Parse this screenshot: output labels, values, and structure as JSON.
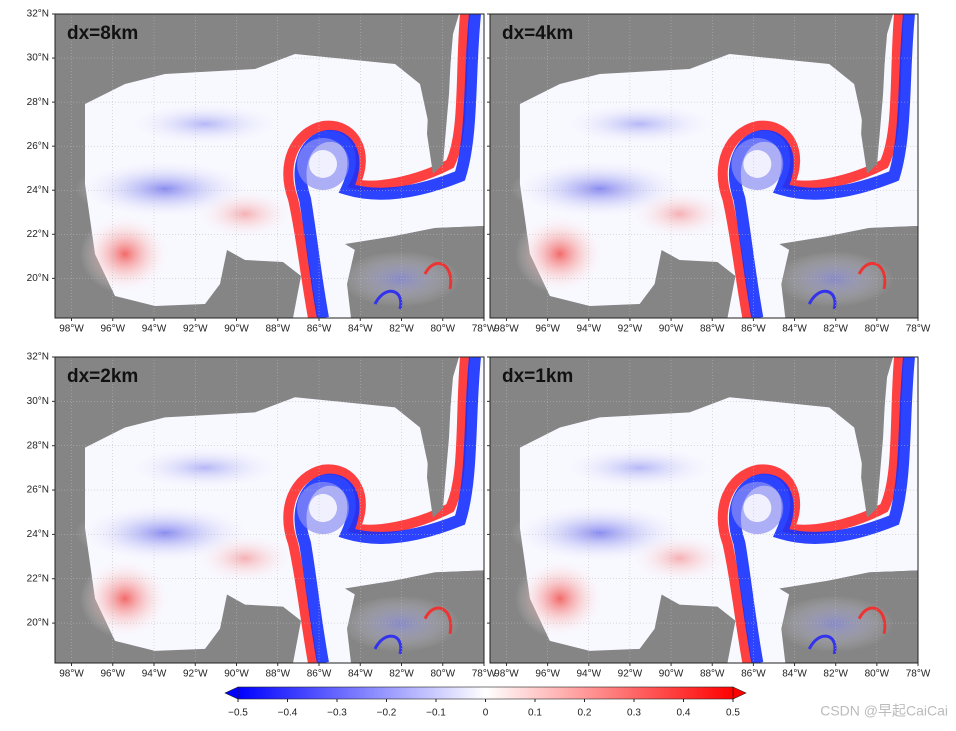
{
  "panels": [
    {
      "title": "dx=8km"
    },
    {
      "title": "dx=4km"
    },
    {
      "title": "dx=2km"
    },
    {
      "title": "dx=1km"
    }
  ],
  "lat_lim": [
    18.2,
    32
  ],
  "lon_lim": [
    -98.8,
    -78
  ],
  "lat_ticks": [
    {
      "value": 32,
      "label": "32°N"
    },
    {
      "value": 30,
      "label": "30°N"
    },
    {
      "value": 28,
      "label": "28°N"
    },
    {
      "value": 26,
      "label": "26°N"
    },
    {
      "value": 24,
      "label": "24°N"
    },
    {
      "value": 22,
      "label": "22°N"
    },
    {
      "value": 20,
      "label": "20°N"
    }
  ],
  "lon_ticks": [
    {
      "value": -98,
      "label": "98°W"
    },
    {
      "value": -96,
      "label": "96°W"
    },
    {
      "value": -94,
      "label": "94°W"
    },
    {
      "value": -92,
      "label": "92°W"
    },
    {
      "value": -90,
      "label": "90°W"
    },
    {
      "value": -88,
      "label": "88°W"
    },
    {
      "value": -86,
      "label": "86°W"
    },
    {
      "value": -84,
      "label": "84°W"
    },
    {
      "value": -82,
      "label": "82°W"
    },
    {
      "value": -80,
      "label": "80°W"
    },
    {
      "value": -78,
      "label": "78°W"
    }
  ],
  "colorbar": {
    "lim": [
      -0.5,
      0.5
    ],
    "colors": [
      "#0000ff",
      "#ffffff",
      "#ff0000"
    ],
    "ticks": [
      {
        "value": -0.5,
        "label": "−0.5"
      },
      {
        "value": -0.4,
        "label": "−0.4"
      },
      {
        "value": -0.3,
        "label": "−0.3"
      },
      {
        "value": -0.2,
        "label": "−0.2"
      },
      {
        "value": -0.1,
        "label": "−0.1"
      },
      0,
      0.1,
      0.2,
      0.3,
      0.4,
      0.5
    ]
  },
  "watermark": "CSDN @早起CaiCai"
}
